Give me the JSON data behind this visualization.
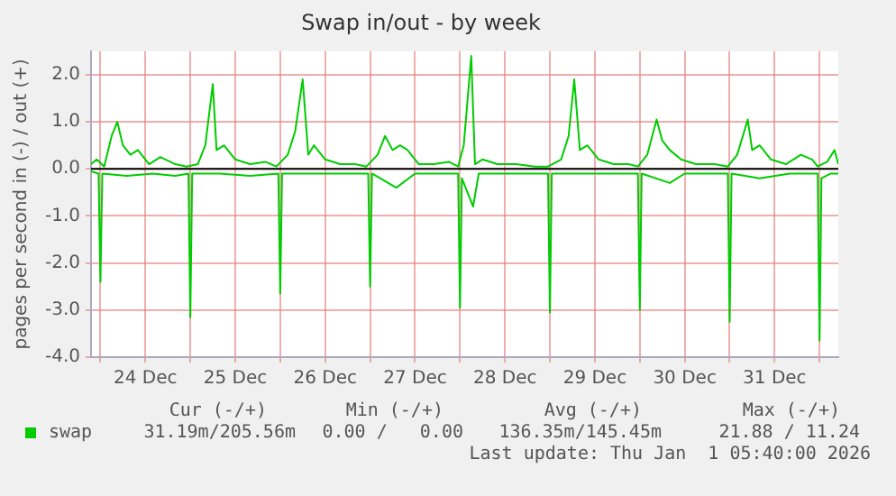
{
  "chart_data": {
    "type": "line",
    "title": "Swap in/out - by week",
    "ylabel": "pages per second in (-) / out (+)",
    "xlim": [
      "2025-12-23T21:30",
      "2026-01-01T05:00"
    ],
    "xticks": [
      {
        "value": "2025-12-24T00:00",
        "label": null
      },
      {
        "value": "2025-12-24T12:00",
        "label": "24 Dec"
      },
      {
        "value": "2025-12-25T00:00",
        "label": null
      },
      {
        "value": "2025-12-25T12:00",
        "label": "25 Dec"
      },
      {
        "value": "2025-12-26T00:00",
        "label": null
      },
      {
        "value": "2025-12-26T12:00",
        "label": "26 Dec"
      },
      {
        "value": "2025-12-27T00:00",
        "label": null
      },
      {
        "value": "2025-12-27T12:00",
        "label": "27 Dec"
      },
      {
        "value": "2025-12-28T00:00",
        "label": null
      },
      {
        "value": "2025-12-28T12:00",
        "label": "28 Dec"
      },
      {
        "value": "2025-12-29T00:00",
        "label": null
      },
      {
        "value": "2025-12-29T12:00",
        "label": "29 Dec"
      },
      {
        "value": "2025-12-30T00:00",
        "label": null
      },
      {
        "value": "2025-12-30T12:00",
        "label": "30 Dec"
      },
      {
        "value": "2025-12-31T00:00",
        "label": null
      },
      {
        "value": "2025-12-31T12:00",
        "label": "31 Dec"
      },
      {
        "value": "2026-01-01T00:00",
        "label": null
      }
    ],
    "ylim": [
      -4,
      2.5
    ],
    "yticks": [
      {
        "value": -4,
        "label": "-4.0"
      },
      {
        "value": -3,
        "label": "-3.0"
      },
      {
        "value": -2,
        "label": "-2.0"
      },
      {
        "value": -1,
        "label": "-1.0"
      },
      {
        "value": 0,
        "label": "0.0"
      },
      {
        "value": 1,
        "label": "1.0"
      },
      {
        "value": 2,
        "label": "2.0"
      }
    ],
    "grid": true,
    "legend": "bottom left",
    "marker": "none",
    "line_style": "solid",
    "ref_lines": [
      {
        "axis": "y",
        "value": 0,
        "color": "#000000"
      }
    ],
    "annotations": [
      "Cur (-/+)",
      "Min (-/+)",
      "Avg (-/+)",
      "Max (-/+)",
      "31.19m/205.56m",
      "0.00 /   0.00",
      "136.35m/145.45m",
      "21.88 / 11.24",
      "Last update: Thu Jan  1 05:40:00 2026"
    ],
    "series": [
      {
        "name": "swap",
        "color": "#00cc00",
        "x": [
          "2025-12-23T21:30",
          "2025-12-23T23:00",
          "2025-12-24T01:00",
          "2025-12-24T03:00",
          "2025-12-24T04:30",
          "2025-12-24T06:00",
          "2025-12-24T08:00",
          "2025-12-24T10:00",
          "2025-12-24T13:00",
          "2025-12-24T16:00",
          "2025-12-24T20:00",
          "2025-12-24T23:00",
          "2025-12-25T02:00",
          "2025-12-25T04:00",
          "2025-12-25T06:00",
          "2025-12-25T07:00",
          "2025-12-25T09:00",
          "2025-12-25T12:00",
          "2025-12-25T16:00",
          "2025-12-25T20:00",
          "2025-12-25T23:00",
          "2025-12-26T02:00",
          "2025-12-26T04:00",
          "2025-12-26T06:00",
          "2025-12-26T07:30",
          "2025-12-26T09:00",
          "2025-12-26T12:00",
          "2025-12-26T16:00",
          "2025-12-26T20:00",
          "2025-12-26T23:00",
          "2025-12-27T02:00",
          "2025-12-27T04:00",
          "2025-12-27T06:00",
          "2025-12-27T08:00",
          "2025-12-27T10:00",
          "2025-12-27T13:00",
          "2025-12-27T17:00",
          "2025-12-27T21:00",
          "2025-12-27T23:30",
          "2025-12-28T01:00",
          "2025-12-28T03:00",
          "2025-12-28T04:00",
          "2025-12-28T06:00",
          "2025-12-28T10:00",
          "2025-12-28T15:00",
          "2025-12-28T20:00",
          "2025-12-28T23:30",
          "2025-12-29T03:00",
          "2025-12-29T05:00",
          "2025-12-29T06:30",
          "2025-12-29T08:00",
          "2025-12-29T10:00",
          "2025-12-29T13:00",
          "2025-12-29T17:00",
          "2025-12-29T21:00",
          "2025-12-29T23:30",
          "2025-12-30T02:00",
          "2025-12-30T04:30",
          "2025-12-30T06:00",
          "2025-12-30T08:00",
          "2025-12-30T11:00",
          "2025-12-30T15:00",
          "2025-12-30T20:00",
          "2025-12-30T23:30",
          "2025-12-31T02:00",
          "2025-12-31T04:50",
          "2025-12-31T06:00",
          "2025-12-31T08:00",
          "2025-12-31T11:00",
          "2025-12-31T15:00",
          "2025-12-31T19:00",
          "2025-12-31T22:00",
          "2025-12-31T23:30",
          "2026-01-01T02:00",
          "2026-01-01T04:00",
          "2026-01-01T05:00"
        ],
        "values": [
          0.1,
          0.2,
          0.05,
          0.7,
          1.0,
          0.5,
          0.3,
          0.4,
          0.1,
          0.25,
          0.1,
          0.05,
          0.1,
          0.5,
          1.8,
          0.4,
          0.5,
          0.2,
          0.1,
          0.15,
          0.05,
          0.3,
          0.8,
          1.9,
          0.3,
          0.5,
          0.2,
          0.1,
          0.1,
          0.05,
          0.3,
          0.7,
          0.4,
          0.5,
          0.4,
          0.1,
          0.1,
          0.15,
          0.05,
          0.5,
          2.4,
          0.1,
          0.2,
          0.1,
          0.1,
          0.05,
          0.05,
          0.2,
          0.7,
          1.9,
          0.4,
          0.5,
          0.2,
          0.1,
          0.1,
          0.05,
          0.3,
          1.05,
          0.6,
          0.4,
          0.2,
          0.1,
          0.1,
          0.05,
          0.3,
          1.05,
          0.4,
          0.5,
          0.2,
          0.1,
          0.3,
          0.2,
          0.05,
          0.15,
          0.4,
          0.1
        ]
      },
      {
        "color": "#00cc00",
        "x": [
          "2025-12-23T21:30",
          "2025-12-23T23:30",
          "2025-12-24T00:00",
          "2025-12-24T00:30",
          "2025-12-24T07:00",
          "2025-12-24T14:00",
          "2025-12-24T20:00",
          "2025-12-24T23:30",
          "2025-12-25T00:00",
          "2025-12-25T00:30",
          "2025-12-25T08:00",
          "2025-12-25T16:00",
          "2025-12-25T23:30",
          "2025-12-26T00:00",
          "2025-12-26T00:30",
          "2025-12-26T10:00",
          "2025-12-26T18:00",
          "2025-12-26T23:30",
          "2025-12-27T00:00",
          "2025-12-27T00:30",
          "2025-12-27T07:00",
          "2025-12-27T12:00",
          "2025-12-27T20:00",
          "2025-12-27T23:30",
          "2025-12-28T00:00",
          "2025-12-28T00:30",
          "2025-12-28T03:30",
          "2025-12-28T05:00",
          "2025-12-28T12:00",
          "2025-12-28T23:30",
          "2025-12-29T00:00",
          "2025-12-29T00:30",
          "2025-12-29T12:00",
          "2025-12-29T23:30",
          "2025-12-30T00:00",
          "2025-12-30T00:30",
          "2025-12-30T08:00",
          "2025-12-30T12:00",
          "2025-12-30T23:30",
          "2025-12-31T00:00",
          "2025-12-31T00:30",
          "2025-12-31T08:00",
          "2025-12-31T16:00",
          "2025-12-31T23:30",
          "2026-01-01T00:00",
          "2026-01-01T00:30",
          "2026-01-01T03:00",
          "2026-01-01T05:00"
        ],
        "values": [
          -0.05,
          -0.1,
          -2.4,
          -0.1,
          -0.15,
          -0.1,
          -0.15,
          -0.1,
          -3.15,
          -0.1,
          -0.1,
          -0.15,
          -0.1,
          -2.65,
          -0.1,
          -0.1,
          -0.1,
          -0.1,
          -2.5,
          -0.1,
          -0.4,
          -0.1,
          -0.1,
          -0.1,
          -2.95,
          -0.2,
          -0.8,
          -0.1,
          -0.1,
          -0.1,
          -3.05,
          -0.1,
          -0.1,
          -0.1,
          -3.0,
          -0.1,
          -0.3,
          -0.1,
          -0.1,
          -3.25,
          -0.1,
          -0.2,
          -0.1,
          -0.1,
          -3.65,
          -0.2,
          -0.1,
          -0.1
        ]
      }
    ]
  }
}
